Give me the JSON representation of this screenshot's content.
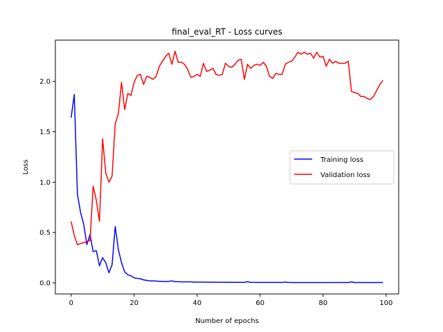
{
  "chart_data": {
    "type": "line",
    "title": "final_eval_RT - Loss curves",
    "xlabel": "Number of epochs",
    "ylabel": "Loss",
    "xlim": [
      -5,
      104
    ],
    "ylim": [
      -0.11,
      2.41
    ],
    "xticks": [
      0,
      20,
      40,
      60,
      80,
      100
    ],
    "xtick_labels": [
      "0",
      "20",
      "40",
      "60",
      "80",
      "100"
    ],
    "yticks": [
      0.0,
      0.5,
      1.0,
      1.5,
      2.0
    ],
    "ytick_labels": [
      "0.0",
      "0.5",
      "1.0",
      "1.5",
      "2.0"
    ],
    "grid": false,
    "legend_position": "center-right",
    "series": [
      {
        "name": "Training loss",
        "color": "#0000ff",
        "x": [
          0,
          1,
          2,
          3,
          4,
          5,
          6,
          7,
          8,
          9,
          10,
          11,
          12,
          13,
          14,
          15,
          16,
          17,
          18,
          19,
          20,
          21,
          22,
          23,
          24,
          25,
          26,
          27,
          28,
          29,
          30,
          31,
          32,
          33,
          34,
          35,
          36,
          37,
          38,
          39,
          40,
          41,
          42,
          43,
          44,
          45,
          46,
          47,
          48,
          49,
          50,
          51,
          52,
          53,
          54,
          55,
          56,
          57,
          58,
          59,
          60,
          61,
          62,
          63,
          64,
          65,
          66,
          67,
          68,
          69,
          70,
          71,
          72,
          73,
          74,
          75,
          76,
          77,
          78,
          79,
          80,
          81,
          82,
          83,
          84,
          85,
          86,
          87,
          88,
          89,
          90,
          91,
          92,
          93,
          94,
          95,
          96,
          97,
          98,
          99
        ],
        "values": [
          1.64,
          1.87,
          0.88,
          0.7,
          0.58,
          0.38,
          0.48,
          0.31,
          0.32,
          0.17,
          0.25,
          0.2,
          0.1,
          0.18,
          0.56,
          0.33,
          0.2,
          0.11,
          0.08,
          0.07,
          0.05,
          0.045,
          0.04,
          0.03,
          0.025,
          0.02,
          0.02,
          0.018,
          0.015,
          0.015,
          0.013,
          0.015,
          0.02,
          0.012,
          0.012,
          0.01,
          0.01,
          0.01,
          0.01,
          0.008,
          0.008,
          0.008,
          0.008,
          0.007,
          0.007,
          0.007,
          0.006,
          0.006,
          0.006,
          0.006,
          0.006,
          0.005,
          0.005,
          0.005,
          0.005,
          0.005,
          0.012,
          0.005,
          0.004,
          0.004,
          0.004,
          0.004,
          0.004,
          0.004,
          0.004,
          0.004,
          0.004,
          0.004,
          0.008,
          0.004,
          0.003,
          0.003,
          0.003,
          0.003,
          0.003,
          0.003,
          0.003,
          0.003,
          0.003,
          0.003,
          0.003,
          0.003,
          0.003,
          0.003,
          0.003,
          0.003,
          0.003,
          0.003,
          0.003,
          0.01,
          0.003,
          0.003,
          0.003,
          0.003,
          0.003,
          0.003,
          0.003,
          0.003,
          0.003,
          0.003
        ]
      },
      {
        "name": "Validation loss",
        "color": "#ff0000",
        "x": [
          0,
          1,
          2,
          3,
          4,
          5,
          6,
          7,
          8,
          9,
          10,
          11,
          12,
          13,
          14,
          15,
          16,
          17,
          18,
          19,
          20,
          21,
          22,
          23,
          24,
          25,
          26,
          27,
          28,
          29,
          30,
          31,
          32,
          33,
          34,
          35,
          36,
          37,
          38,
          39,
          40,
          41,
          42,
          43,
          44,
          45,
          46,
          47,
          48,
          49,
          50,
          51,
          52,
          53,
          54,
          55,
          56,
          57,
          58,
          59,
          60,
          61,
          62,
          63,
          64,
          65,
          66,
          67,
          68,
          69,
          70,
          71,
          72,
          73,
          74,
          75,
          76,
          77,
          78,
          79,
          80,
          81,
          82,
          83,
          84,
          85,
          86,
          87,
          88,
          89,
          90,
          91,
          92,
          93,
          94,
          95,
          96,
          97,
          98,
          99
        ],
        "values": [
          0.61,
          0.47,
          0.38,
          0.39,
          0.4,
          0.41,
          0.42,
          0.96,
          0.82,
          0.61,
          1.43,
          1.09,
          1.0,
          1.06,
          1.58,
          1.68,
          1.99,
          1.72,
          1.88,
          1.86,
          1.99,
          2.06,
          2.07,
          1.97,
          2.05,
          2.04,
          2.02,
          2.05,
          2.15,
          2.2,
          2.25,
          2.28,
          2.17,
          2.3,
          2.19,
          2.19,
          2.17,
          2.12,
          2.04,
          2.05,
          2.07,
          2.05,
          2.18,
          2.1,
          2.11,
          2.13,
          2.07,
          2.06,
          2.07,
          2.18,
          2.15,
          2.14,
          2.17,
          2.21,
          2.22,
          2.02,
          2.17,
          2.13,
          2.16,
          2.17,
          2.16,
          2.19,
          2.15,
          2.05,
          2.03,
          2.08,
          2.07,
          2.07,
          2.17,
          2.19,
          2.2,
          2.24,
          2.29,
          2.27,
          2.29,
          2.27,
          2.28,
          2.23,
          2.29,
          2.24,
          2.25,
          2.15,
          2.22,
          2.18,
          2.2,
          2.18,
          2.18,
          2.18,
          2.2,
          1.9,
          1.89,
          1.88,
          1.85,
          1.85,
          1.83,
          1.82,
          1.85,
          1.91,
          1.97,
          2.01
        ]
      }
    ]
  }
}
